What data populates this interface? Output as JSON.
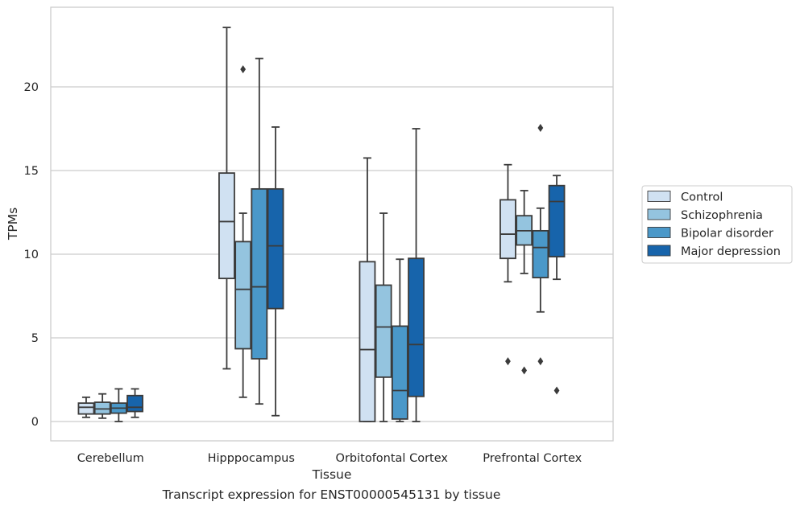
{
  "chart_data": {
    "type": "box",
    "xlabel": "Tissue",
    "ylabel": "TPMs",
    "ylim": [
      -1.2,
      24.5
    ],
    "yticks": [
      0,
      5,
      10,
      15,
      20
    ],
    "grid": "horizontal",
    "legend_position": "right",
    "categories": [
      "Cerebellum",
      "Hipppocampus",
      "Orbitofontal Cortex",
      "Prefrontal Cortex"
    ],
    "series": [
      {
        "name": "Control",
        "color": "#d0e1f2",
        "boxes": [
          {
            "min": 0.25,
            "q1": 0.45,
            "median": 0.85,
            "q3": 1.1,
            "max": 1.45,
            "outliers": []
          },
          {
            "min": 3.15,
            "q1": 8.55,
            "median": 11.95,
            "q3": 14.85,
            "max": 23.55,
            "outliers": []
          },
          {
            "min": 0.0,
            "q1": 0.0,
            "median": 4.3,
            "q3": 9.55,
            "max": 15.75,
            "outliers": []
          },
          {
            "min": 8.35,
            "q1": 9.75,
            "median": 11.2,
            "q3": 13.25,
            "max": 15.35,
            "outliers": [
              3.6
            ]
          }
        ]
      },
      {
        "name": "Schizophrenia",
        "color": "#94c4df",
        "boxes": [
          {
            "min": 0.2,
            "q1": 0.45,
            "median": 0.75,
            "q3": 1.15,
            "max": 1.65,
            "outliers": []
          },
          {
            "min": 1.45,
            "q1": 4.35,
            "median": 7.9,
            "q3": 10.75,
            "max": 12.45,
            "outliers": [
              21.05
            ]
          },
          {
            "min": 0.0,
            "q1": 2.65,
            "median": 5.65,
            "q3": 8.15,
            "max": 12.45,
            "outliers": []
          },
          {
            "min": 8.85,
            "q1": 10.55,
            "median": 11.4,
            "q3": 12.3,
            "max": 13.8,
            "outliers": [
              3.05
            ]
          }
        ]
      },
      {
        "name": "Bipolar disorder",
        "color": "#4a98c9",
        "boxes": [
          {
            "min": 0.0,
            "q1": 0.5,
            "median": 0.8,
            "q3": 1.1,
            "max": 1.95,
            "outliers": []
          },
          {
            "min": 1.05,
            "q1": 3.75,
            "median": 8.05,
            "q3": 13.9,
            "max": 21.7,
            "outliers": []
          },
          {
            "min": 0.0,
            "q1": 0.15,
            "median": 1.85,
            "q3": 5.7,
            "max": 9.7,
            "outliers": []
          },
          {
            "min": 6.55,
            "q1": 8.6,
            "median": 10.4,
            "q3": 11.4,
            "max": 12.75,
            "outliers": [
              17.55,
              3.6
            ]
          }
        ]
      },
      {
        "name": "Major depression",
        "color": "#1764ab",
        "boxes": [
          {
            "min": 0.25,
            "q1": 0.6,
            "median": 0.85,
            "q3": 1.55,
            "max": 1.95,
            "outliers": []
          },
          {
            "min": 0.35,
            "q1": 6.75,
            "median": 10.5,
            "q3": 13.9,
            "max": 17.6,
            "outliers": []
          },
          {
            "min": 0.0,
            "q1": 1.5,
            "median": 4.6,
            "q3": 9.75,
            "max": 17.5,
            "outliers": []
          },
          {
            "min": 8.5,
            "q1": 9.85,
            "median": 13.15,
            "q3": 14.1,
            "max": 14.7,
            "outliers": [
              1.85
            ]
          }
        ]
      }
    ]
  },
  "caption": "Transcript expression for ENST00000545131 by tissue"
}
